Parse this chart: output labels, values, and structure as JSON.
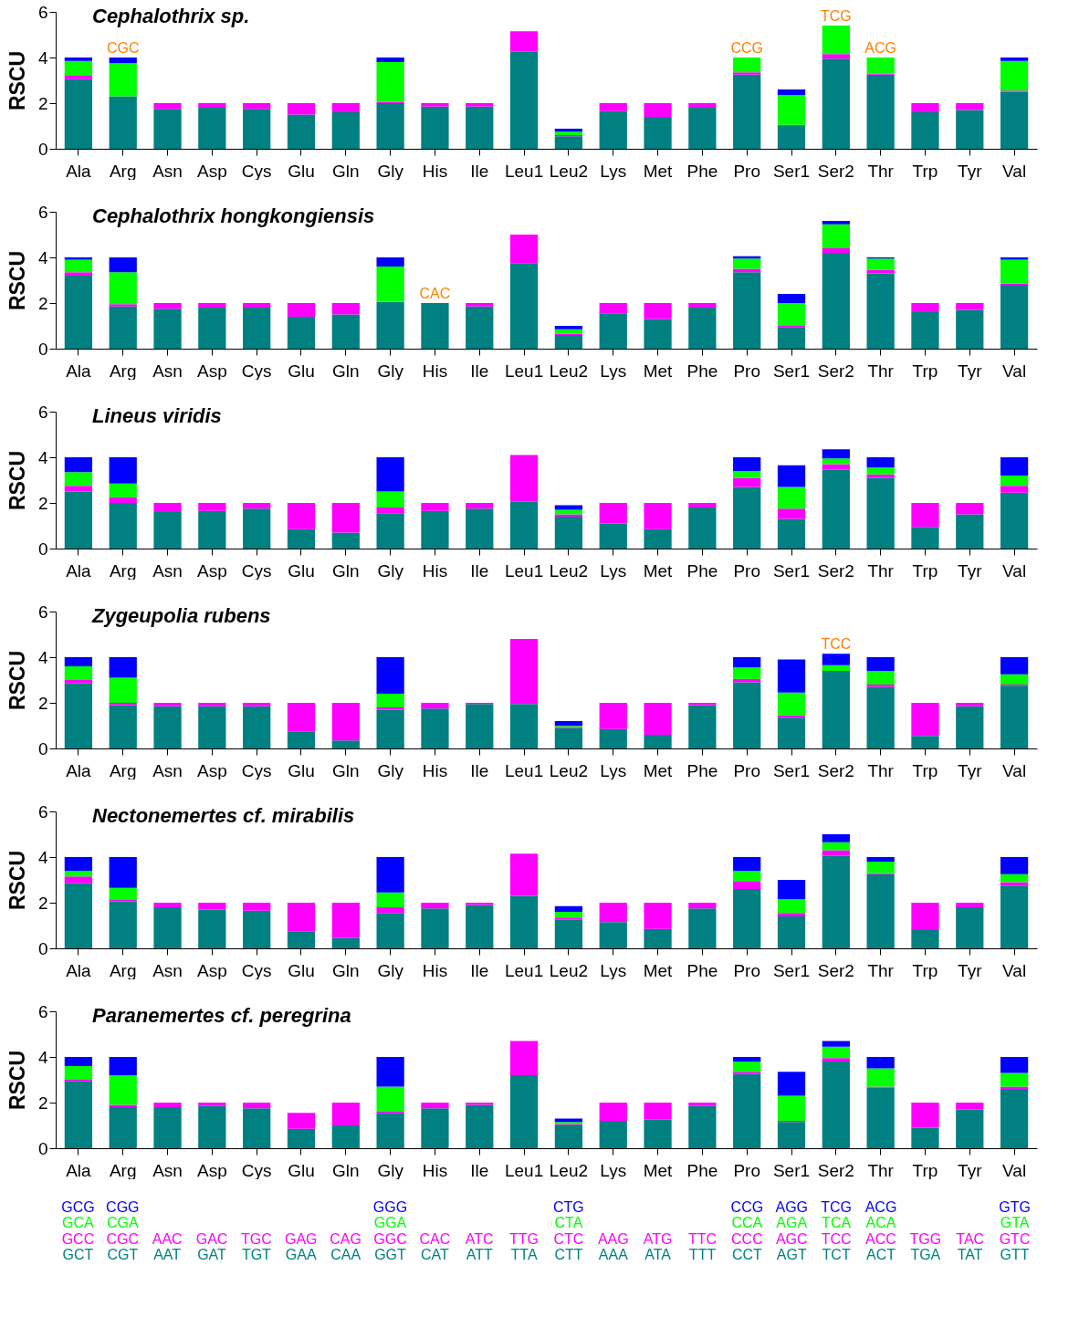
{
  "chart_data": [
    {
      "type": "bar",
      "stacked": true,
      "title": "Cephalothrix sp.",
      "ylabel": "RSCU",
      "ylim": [
        0,
        6
      ],
      "yticks": [
        0,
        2,
        4,
        6
      ],
      "categories": [
        "Ala",
        "Arg",
        "Asn",
        "Asp",
        "Cys",
        "Glu",
        "Gln",
        "Gly",
        "His",
        "Ile",
        "Leu1",
        "Leu2",
        "Lys",
        "Met",
        "Phe",
        "Pro",
        "Ser1",
        "Ser2",
        "Thr",
        "Trp",
        "Tyr",
        "Val"
      ],
      "series": [
        {
          "color": "#008080",
          "values": [
            3.05,
            2.3,
            1.75,
            1.8,
            1.75,
            1.5,
            1.6,
            2.0,
            1.85,
            1.85,
            4.25,
            0.55,
            1.65,
            1.4,
            1.8,
            3.25,
            1.0,
            3.95,
            3.25,
            1.6,
            1.7,
            2.5
          ]
        },
        {
          "color": "#ff00ff",
          "values": [
            0.15,
            0,
            0.25,
            0.2,
            0.25,
            0.5,
            0.4,
            0.05,
            0.15,
            0.15,
            0.9,
            0.05,
            0.35,
            0.6,
            0.2,
            0.1,
            0.05,
            0.2,
            0.05,
            0.4,
            0.3,
            0.05
          ]
        },
        {
          "color": "#00ff00",
          "values": [
            0.65,
            1.45,
            null,
            null,
            null,
            null,
            null,
            1.75,
            null,
            null,
            null,
            0.15,
            null,
            null,
            null,
            0.65,
            1.3,
            1.25,
            0.7,
            null,
            null,
            1.3
          ]
        },
        {
          "color": "#0000ff",
          "values": [
            0.15,
            0.25,
            null,
            null,
            null,
            null,
            null,
            0.2,
            null,
            null,
            null,
            0.13,
            null,
            null,
            null,
            0,
            0.25,
            0,
            0,
            null,
            null,
            0.15
          ]
        }
      ],
      "annotations": [
        {
          "text": "CGC",
          "x": "Arg",
          "y": 4.0
        },
        {
          "text": "CCG",
          "x": "Pro",
          "y": 4.0
        },
        {
          "text": "TCG",
          "x": "Ser2",
          "y": 5.4
        },
        {
          "text": "ACG",
          "x": "Thr",
          "y": 4.0
        }
      ]
    },
    {
      "type": "bar",
      "stacked": true,
      "title": "Cephalothrix hongkongiensis",
      "ylabel": "RSCU",
      "ylim": [
        0,
        6
      ],
      "yticks": [
        0,
        2,
        4,
        6
      ],
      "categories": [
        "Ala",
        "Arg",
        "Asn",
        "Asp",
        "Cys",
        "Glu",
        "Gln",
        "Gly",
        "His",
        "Ile",
        "Leu1",
        "Leu2",
        "Lys",
        "Met",
        "Phe",
        "Pro",
        "Ser1",
        "Ser2",
        "Thr",
        "Trp",
        "Tyr",
        "Val"
      ],
      "series": [
        {
          "color": "#008080",
          "values": [
            3.2,
            1.85,
            1.75,
            1.8,
            1.8,
            1.4,
            1.5,
            2.05,
            2.0,
            1.85,
            3.75,
            0.6,
            1.55,
            1.3,
            1.8,
            3.35,
            0.95,
            4.2,
            3.3,
            1.6,
            1.7,
            2.8
          ]
        },
        {
          "color": "#ff00ff",
          "values": [
            0.15,
            0.1,
            0.25,
            0.2,
            0.2,
            0.6,
            0.5,
            0,
            0,
            0.15,
            1.25,
            0.05,
            0.45,
            0.7,
            0.2,
            0.15,
            0.05,
            0.2,
            0.15,
            0.4,
            0.3,
            0.05
          ]
        },
        {
          "color": "#00ff00",
          "values": [
            0.55,
            1.4,
            null,
            null,
            null,
            null,
            null,
            1.55,
            null,
            null,
            null,
            0.2,
            null,
            null,
            null,
            0.45,
            1.0,
            1.05,
            0.5,
            null,
            null,
            1.05
          ]
        },
        {
          "color": "#0000ff",
          "values": [
            0.1,
            0.65,
            null,
            null,
            null,
            null,
            null,
            0.4,
            null,
            null,
            null,
            0.15,
            null,
            null,
            null,
            0.1,
            0.4,
            0.15,
            0.05,
            null,
            null,
            0.1
          ]
        }
      ],
      "annotations": [
        {
          "text": "CAC",
          "x": "His",
          "y": 2.0
        }
      ]
    },
    {
      "type": "bar",
      "stacked": true,
      "title": "Lineus viridis",
      "ylabel": "RSCU",
      "ylim": [
        0,
        6
      ],
      "yticks": [
        0,
        2,
        4,
        6
      ],
      "categories": [
        "Ala",
        "Arg",
        "Asn",
        "Asp",
        "Cys",
        "Glu",
        "Gln",
        "Gly",
        "His",
        "Ile",
        "Leu1",
        "Leu2",
        "Lys",
        "Met",
        "Phe",
        "Pro",
        "Ser1",
        "Ser2",
        "Thr",
        "Trp",
        "Tyr",
        "Val"
      ],
      "series": [
        {
          "color": "#008080",
          "values": [
            2.5,
            2.0,
            1.6,
            1.65,
            1.75,
            0.85,
            0.7,
            1.55,
            1.65,
            1.75,
            2.05,
            1.4,
            1.1,
            0.85,
            1.8,
            2.7,
            1.3,
            3.45,
            3.1,
            0.95,
            1.5,
            2.45
          ]
        },
        {
          "color": "#ff00ff",
          "values": [
            0.25,
            0.25,
            0.4,
            0.35,
            0.25,
            1.15,
            1.3,
            0.25,
            0.35,
            0.25,
            2.05,
            0.1,
            0.9,
            1.15,
            0.2,
            0.4,
            0.45,
            0.25,
            0.15,
            1.05,
            0.5,
            0.3
          ]
        },
        {
          "color": "#00ff00",
          "values": [
            0.6,
            0.6,
            null,
            null,
            null,
            null,
            null,
            0.7,
            null,
            null,
            null,
            0.2,
            null,
            null,
            null,
            0.3,
            0.95,
            0.25,
            0.3,
            null,
            null,
            0.45
          ]
        },
        {
          "color": "#0000ff",
          "values": [
            0.65,
            1.15,
            null,
            null,
            null,
            null,
            null,
            1.5,
            null,
            null,
            null,
            0.2,
            null,
            null,
            null,
            0.6,
            0.95,
            0.4,
            0.45,
            null,
            null,
            0.8
          ]
        }
      ]
    },
    {
      "type": "bar",
      "stacked": true,
      "title": "Zygeupolia rubens",
      "ylabel": "RSCU",
      "ylim": [
        0,
        6
      ],
      "yticks": [
        0,
        2,
        4,
        6
      ],
      "categories": [
        "Ala",
        "Arg",
        "Asn",
        "Asp",
        "Cys",
        "Glu",
        "Gln",
        "Gly",
        "His",
        "Ile",
        "Leu1",
        "Leu2",
        "Lys",
        "Met",
        "Phe",
        "Pro",
        "Ser1",
        "Ser2",
        "Thr",
        "Trp",
        "Tyr",
        "Val"
      ],
      "series": [
        {
          "color": "#008080",
          "values": [
            2.85,
            1.9,
            1.85,
            1.85,
            1.85,
            0.75,
            0.35,
            1.7,
            1.75,
            1.95,
            1.95,
            0.9,
            0.85,
            0.6,
            1.9,
            2.9,
            1.35,
            3.4,
            2.7,
            0.55,
            1.85,
            2.75
          ]
        },
        {
          "color": "#ff00ff",
          "values": [
            0.15,
            0.1,
            0.15,
            0.15,
            0.15,
            1.25,
            1.65,
            0.1,
            0.25,
            0.05,
            2.85,
            0.05,
            1.15,
            1.4,
            0.1,
            0.15,
            0.1,
            0,
            0.1,
            1.45,
            0.15,
            0.05
          ]
        },
        {
          "color": "#00ff00",
          "values": [
            0.6,
            1.1,
            null,
            null,
            null,
            null,
            null,
            0.6,
            null,
            null,
            null,
            0.05,
            null,
            null,
            null,
            0.5,
            1.0,
            0.25,
            0.6,
            null,
            null,
            0.45
          ]
        },
        {
          "color": "#0000ff",
          "values": [
            0.4,
            0.9,
            null,
            null,
            null,
            null,
            null,
            1.6,
            null,
            null,
            null,
            0.2,
            null,
            null,
            null,
            0.45,
            1.45,
            0.5,
            0.6,
            null,
            null,
            0.75
          ]
        }
      ],
      "annotations": [
        {
          "text": "TCC",
          "x": "Ser2",
          "y": 4.15
        }
      ]
    },
    {
      "type": "bar",
      "stacked": true,
      "title": "Nectonemertes cf. mirabilis",
      "ylabel": "RSCU",
      "ylim": [
        0,
        6
      ],
      "yticks": [
        0,
        2,
        4,
        6
      ],
      "categories": [
        "Ala",
        "Arg",
        "Asn",
        "Asp",
        "Cys",
        "Glu",
        "Gln",
        "Gly",
        "His",
        "Ile",
        "Leu1",
        "Leu2",
        "Lys",
        "Met",
        "Phe",
        "Pro",
        "Ser1",
        "Ser2",
        "Thr",
        "Trp",
        "Tyr",
        "Val"
      ],
      "series": [
        {
          "color": "#008080",
          "values": [
            2.85,
            2.05,
            1.8,
            1.7,
            1.65,
            0.75,
            0.45,
            1.55,
            1.75,
            1.9,
            2.3,
            1.25,
            1.15,
            0.85,
            1.75,
            2.6,
            1.4,
            4.05,
            3.25,
            0.8,
            1.8,
            2.75
          ]
        },
        {
          "color": "#ff00ff",
          "values": [
            0.3,
            0.1,
            0.2,
            0.3,
            0.35,
            1.25,
            1.55,
            0.25,
            0.25,
            0.1,
            1.85,
            0.1,
            0.85,
            1.15,
            0.25,
            0.35,
            0.15,
            0.25,
            0.05,
            1.2,
            0.2,
            0.15
          ]
        },
        {
          "color": "#00ff00",
          "values": [
            0.25,
            0.5,
            null,
            null,
            null,
            null,
            null,
            0.65,
            null,
            null,
            null,
            0.25,
            null,
            null,
            null,
            0.45,
            0.6,
            0.35,
            0.5,
            null,
            null,
            0.35
          ]
        },
        {
          "color": "#0000ff",
          "values": [
            0.6,
            1.35,
            null,
            null,
            null,
            null,
            null,
            1.55,
            null,
            null,
            null,
            0.25,
            null,
            null,
            null,
            0.6,
            0.85,
            0.35,
            0.2,
            null,
            null,
            0.75
          ]
        }
      ]
    },
    {
      "type": "bar",
      "stacked": true,
      "title": "Paranemertes cf. peregrina",
      "ylabel": "RSCU",
      "ylim": [
        0,
        6
      ],
      "yticks": [
        0,
        2,
        4,
        6
      ],
      "categories": [
        "Ala",
        "Arg",
        "Asn",
        "Asp",
        "Cys",
        "Glu",
        "Gln",
        "Gly",
        "His",
        "Ile",
        "Leu1",
        "Leu2",
        "Lys",
        "Met",
        "Phe",
        "Pro",
        "Ser1",
        "Ser2",
        "Thr",
        "Trp",
        "Tyr",
        "Val"
      ],
      "series": [
        {
          "color": "#008080",
          "values": [
            2.95,
            1.8,
            1.8,
            1.85,
            1.75,
            0.85,
            1.0,
            1.55,
            1.75,
            1.9,
            3.2,
            1.0,
            1.2,
            1.25,
            1.85,
            3.25,
            1.15,
            3.8,
            2.65,
            0.9,
            1.7,
            2.6
          ]
        },
        {
          "color": "#ff00ff",
          "values": [
            0.05,
            0.1,
            0.2,
            0.15,
            0.25,
            0.7,
            1.0,
            0.05,
            0.25,
            0.1,
            1.5,
            0.05,
            0.8,
            0.75,
            0.15,
            0.1,
            0.05,
            0.15,
            0.05,
            1.1,
            0.3,
            0.1
          ]
        },
        {
          "color": "#00ff00",
          "values": [
            0.6,
            1.3,
            null,
            null,
            null,
            null,
            null,
            1.1,
            null,
            null,
            null,
            0.1,
            null,
            null,
            null,
            0.45,
            1.1,
            0.5,
            0.8,
            null,
            null,
            0.6
          ]
        },
        {
          "color": "#0000ff",
          "values": [
            0.4,
            0.8,
            null,
            null,
            null,
            null,
            null,
            1.3,
            null,
            null,
            null,
            0.15,
            null,
            null,
            null,
            0.2,
            1.05,
            0.25,
            0.5,
            null,
            null,
            0.7
          ]
        }
      ]
    },
    {
      "type": "other",
      "categories": [
        null,
        null,
        null,
        null,
        null,
        null,
        null,
        null,
        null,
        null,
        null,
        null,
        null,
        null,
        null,
        null,
        null,
        null,
        null,
        null,
        null,
        null
      ],
      "series": [
        {
          "color": "#008080",
          "values": [
            null,
            null,
            null,
            null,
            null,
            null,
            null,
            null,
            null,
            null,
            null,
            null,
            null,
            null,
            null,
            null,
            null,
            null,
            null,
            null,
            null,
            null
          ],
          "value_labels": [
            "GCT",
            "CGT",
            "AAT",
            "GAT",
            "TGT",
            "GAA",
            "CAA",
            "GGT",
            "CAT",
            "ATT",
            "TTA",
            "CTT",
            "AAA",
            "ATA",
            "TTT",
            "CCT",
            "AGT",
            "TCT",
            "ACT",
            "TGA",
            "TAT",
            "GTT"
          ]
        },
        {
          "color": "#ff00ff",
          "values": [
            null,
            null,
            null,
            null,
            null,
            null,
            null,
            null,
            null,
            null,
            null,
            null,
            null,
            null,
            null,
            null,
            null,
            null,
            null,
            null,
            null,
            null
          ],
          "value_labels": [
            "GCC",
            "CGC",
            "AAC",
            "GAC",
            "TGC",
            "GAG",
            "CAG",
            "GGC",
            "CAC",
            "ATC",
            "TTG",
            "CTC",
            "AAG",
            "ATG",
            "TTC",
            "CCC",
            "AGC",
            "TCC",
            "ACC",
            "TGG",
            "TAC",
            "GTC"
          ]
        },
        {
          "color": "#00ff00",
          "values": [
            null,
            null,
            null,
            null,
            null,
            null,
            null,
            null,
            null,
            null,
            null,
            null,
            null,
            null,
            null,
            null,
            null,
            null,
            null,
            null,
            null,
            null
          ],
          "value_labels": [
            "GCA",
            "CGA",
            null,
            null,
            null,
            null,
            null,
            "GGA",
            null,
            null,
            null,
            "CTA",
            null,
            null,
            null,
            "CCA",
            "AGA",
            "TCA",
            "ACA",
            null,
            null,
            "GTA"
          ]
        },
        {
          "color": "#0000ff",
          "values": [
            null,
            null,
            null,
            null,
            null,
            null,
            null,
            null,
            null,
            null,
            null,
            null,
            null,
            null,
            null,
            null,
            null,
            null,
            null,
            null,
            null,
            null
          ],
          "value_labels": [
            "GCG",
            "CGG",
            null,
            null,
            null,
            null,
            null,
            "GGG",
            null,
            null,
            null,
            "CTG",
            null,
            null,
            null,
            "CCG",
            "AGG",
            "TCG",
            "ACG",
            null,
            null,
            "GTG"
          ]
        }
      ]
    }
  ]
}
